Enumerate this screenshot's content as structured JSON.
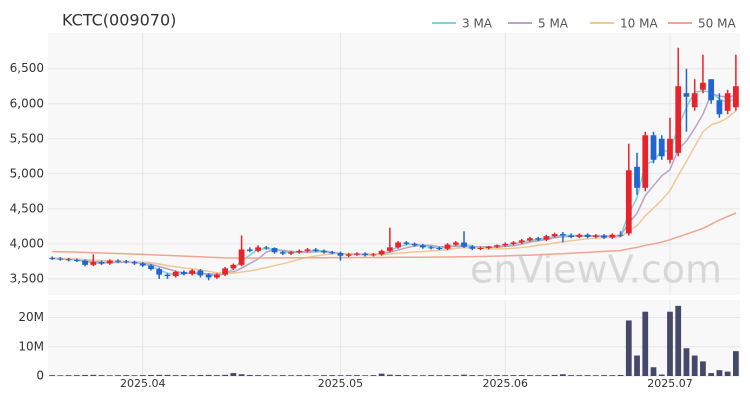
{
  "chart_data": {
    "type": "candlestick",
    "title": "KCTC(009070)",
    "watermark": "enViewV.com",
    "categories": [
      null,
      null,
      null,
      null,
      null,
      null,
      null,
      null,
      null,
      null,
      null,
      "2025.04",
      null,
      null,
      null,
      null,
      null,
      null,
      null,
      null,
      null,
      null,
      null,
      null,
      null,
      null,
      null,
      null,
      null,
      null,
      null,
      null,
      null,
      null,
      null,
      "2025.05",
      null,
      null,
      null,
      null,
      null,
      null,
      null,
      null,
      null,
      null,
      null,
      null,
      null,
      null,
      null,
      null,
      null,
      null,
      null,
      "2025.06",
      null,
      null,
      null,
      null,
      null,
      null,
      null,
      null,
      null,
      null,
      null,
      null,
      null,
      null,
      null,
      null,
      null,
      null,
      null,
      "2025.07",
      null,
      null,
      null,
      null,
      null,
      null,
      null,
      null
    ],
    "open": [
      3800,
      3790,
      3780,
      3770,
      3760,
      3700,
      3740,
      3720,
      3760,
      3750,
      3740,
      3720,
      3690,
      3640,
      3560,
      3540,
      3600,
      3570,
      3620,
      3560,
      3520,
      3560,
      3650,
      3700,
      3920,
      3900,
      3950,
      3940,
      3880,
      3860,
      3880,
      3900,
      3920,
      3900,
      3880,
      3870,
      3830,
      3850,
      3860,
      3840,
      3850,
      3900,
      3950,
      4020,
      4000,
      3980,
      3950,
      3940,
      3930,
      3990,
      4020,
      3960,
      3930,
      3940,
      3960,
      3980,
      4000,
      4020,
      4050,
      4080,
      4060,
      4110,
      4140,
      4120,
      4100,
      4130,
      4100,
      4120,
      4090,
      4130,
      4150,
      5100,
      4800,
      5550,
      5500,
      5200,
      5300,
      6150,
      5950,
      6200,
      6350,
      6050,
      5900,
      5950
    ],
    "high": [
      3820,
      3810,
      3800,
      3790,
      3780,
      3850,
      3760,
      3780,
      3780,
      3770,
      3760,
      3740,
      3710,
      3660,
      3580,
      3620,
      3620,
      3640,
      3640,
      3580,
      3580,
      3670,
      3720,
      4120,
      3950,
      3980,
      3970,
      3950,
      3900,
      3900,
      3920,
      3940,
      3940,
      3920,
      3900,
      3890,
      3870,
      3880,
      3880,
      3870,
      3920,
      4230,
      4040,
      4040,
      4020,
      4000,
      3970,
      3960,
      4010,
      4040,
      4180,
      3980,
      3960,
      3970,
      3990,
      4020,
      4040,
      4070,
      4100,
      4100,
      4130,
      4160,
      4170,
      4150,
      4150,
      4150,
      4140,
      4140,
      4150,
      4180,
      5430,
      5300,
      5600,
      5600,
      5550,
      5800,
      6800,
      6500,
      6350,
      6700,
      6350,
      6150,
      6200,
      6700
    ],
    "low": [
      3770,
      3760,
      3750,
      3740,
      3680,
      3680,
      3700,
      3700,
      3730,
      3720,
      3700,
      3670,
      3620,
      3500,
      3500,
      3520,
      3550,
      3550,
      3520,
      3480,
      3500,
      3540,
      3630,
      3680,
      3880,
      3880,
      3920,
      3860,
      3840,
      3840,
      3860,
      3880,
      3880,
      3860,
      3850,
      3760,
      3810,
      3830,
      3820,
      3820,
      3830,
      3880,
      3930,
      3980,
      3960,
      3930,
      3920,
      3910,
      3910,
      3970,
      3940,
      3910,
      3910,
      3920,
      3940,
      3960,
      3980,
      4000,
      4030,
      4040,
      4040,
      4090,
      4020,
      4080,
      4080,
      4080,
      4080,
      4070,
      4070,
      4100,
      4120,
      4700,
      4750,
      5150,
      5200,
      5150,
      5250,
      5600,
      5900,
      6150,
      6000,
      5800,
      5850,
      5900
    ],
    "close": [
      3790,
      3780,
      3770,
      3760,
      3700,
      3740,
      3720,
      3760,
      3750,
      3740,
      3720,
      3690,
      3640,
      3560,
      3540,
      3600,
      3570,
      3620,
      3550,
      3520,
      3560,
      3650,
      3700,
      3920,
      3900,
      3950,
      3940,
      3880,
      3860,
      3880,
      3900,
      3920,
      3900,
      3880,
      3870,
      3830,
      3850,
      3860,
      3840,
      3850,
      3900,
      3950,
      4020,
      4000,
      3980,
      3950,
      3940,
      3930,
      3990,
      4020,
      3960,
      3930,
      3940,
      3960,
      3980,
      4000,
      4020,
      4050,
      4080,
      4060,
      4110,
      4140,
      4120,
      4100,
      4130,
      4100,
      4120,
      4090,
      4130,
      4120,
      5050,
      4800,
      5550,
      5200,
      5250,
      5500,
      6250,
      6100,
      6150,
      6300,
      6050,
      5850,
      6150,
      6250
    ],
    "volume": [
      300000,
      250000,
      280000,
      300000,
      350000,
      400000,
      300000,
      250000,
      280000,
      300000,
      260000,
      300000,
      350000,
      400000,
      380000,
      300000,
      320000,
      300000,
      350000,
      380000,
      300000,
      400000,
      1000000,
      600000,
      350000,
      300000,
      280000,
      250000,
      300000,
      260000,
      280000,
      300000,
      250000,
      280000,
      300000,
      260000,
      280000,
      300000,
      250000,
      300000,
      800000,
      450000,
      350000,
      300000,
      280000,
      260000,
      300000,
      280000,
      320000,
      300000,
      450000,
      300000,
      280000,
      260000,
      300000,
      280000,
      300000,
      320000,
      300000,
      280000,
      300000,
      350000,
      600000,
      300000,
      280000,
      300000,
      260000,
      300000,
      280000,
      350000,
      19000000,
      7000000,
      22000000,
      3000000,
      500000,
      22000000,
      24000000,
      9500000,
      7000000,
      5000000,
      1000000,
      2000000,
      1500000,
      8500000
    ],
    "up_color": "#e8232b",
    "down_color": "#1f66d1",
    "volume_color": "#464869",
    "ma_series": [
      {
        "name": "3 MA",
        "color": "#7fd3d6",
        "values": [
          3790,
          3785,
          3780,
          3770,
          3743,
          3733,
          3720,
          3740,
          3743,
          3750,
          3737,
          3717,
          3683,
          3630,
          3580,
          3567,
          3570,
          3597,
          3580,
          3563,
          3543,
          3577,
          3637,
          3757,
          3840,
          3923,
          3930,
          3923,
          3893,
          3873,
          3880,
          3900,
          3907,
          3900,
          3883,
          3860,
          3850,
          3847,
          3850,
          3850,
          3863,
          3900,
          3957,
          3990,
          4000,
          3977,
          3957,
          3940,
          3953,
          3980,
          3990,
          3970,
          3943,
          3943,
          3960,
          3980,
          4000,
          4023,
          4050,
          4063,
          4083,
          4103,
          4123,
          4120,
          4117,
          4110,
          4117,
          4103,
          4113,
          4113,
          4433,
          4657,
          5133,
          5183,
          5333,
          5317,
          5667,
          5950,
          6167,
          6183,
          6167,
          6067,
          6017,
          6083
        ]
      },
      {
        "name": "5 MA",
        "color": "#b9a3c9",
        "values": [
          3790,
          3786,
          3782,
          3778,
          3760,
          3750,
          3738,
          3736,
          3734,
          3742,
          3738,
          3724,
          3710,
          3676,
          3642,
          3608,
          3582,
          3578,
          3576,
          3572,
          3564,
          3584,
          3600,
          3652,
          3718,
          3784,
          3882,
          3918,
          3906,
          3892,
          3884,
          3876,
          3888,
          3888,
          3874,
          3860,
          3856,
          3852,
          3844,
          3846,
          3860,
          3880,
          3912,
          3944,
          3970,
          3980,
          3978,
          3960,
          3958,
          3966,
          3958,
          3954,
          3956,
          3960,
          3952,
          3962,
          3974,
          3994,
          4026,
          4042,
          4064,
          4088,
          4102,
          4106,
          4114,
          4116,
          4114,
          4108,
          4114,
          4112,
          4298,
          4434,
          4692,
          4830,
          4970,
          5060,
          5350,
          5470,
          5650,
          5850,
          6140,
          6110,
          6090,
          6120
        ]
      },
      {
        "name": "10 MA",
        "color": "#f0c896",
        "values": [
          3800,
          3795,
          3790,
          3785,
          3775,
          3770,
          3762,
          3758,
          3754,
          3750,
          3746,
          3740,
          3733,
          3713,
          3690,
          3674,
          3656,
          3644,
          3627,
          3607,
          3588,
          3584,
          3582,
          3598,
          3612,
          3636,
          3662,
          3688,
          3717,
          3746,
          3780,
          3807,
          3827,
          3845,
          3856,
          3860,
          3862,
          3860,
          3858,
          3855,
          3850,
          3855,
          3865,
          3875,
          3885,
          3890,
          3899,
          3907,
          3919,
          3936,
          3947,
          3945,
          3936,
          3930,
          3928,
          3930,
          3937,
          3948,
          3963,
          3981,
          3995,
          4012,
          4031,
          4045,
          4060,
          4072,
          4083,
          4090,
          4095,
          4097,
          4190,
          4258,
          4400,
          4510,
          4625,
          4760,
          4975,
          5180,
          5390,
          5600,
          5700,
          5740,
          5800,
          5900
        ]
      },
      {
        "name": "50 MA",
        "color": "#f0a590",
        "values": [
          3890,
          3888,
          3885,
          3882,
          3878,
          3874,
          3870,
          3866,
          3862,
          3858,
          3854,
          3850,
          3845,
          3840,
          3835,
          3830,
          3825,
          3820,
          3815,
          3810,
          3805,
          3800,
          3798,
          3797,
          3797,
          3798,
          3799,
          3800,
          3800,
          3801,
          3802,
          3802,
          3803,
          3803,
          3804,
          3804,
          3804,
          3805,
          3805,
          3805,
          3806,
          3807,
          3808,
          3809,
          3810,
          3810,
          3811,
          3812,
          3813,
          3814,
          3816,
          3818,
          3820,
          3822,
          3825,
          3828,
          3832,
          3836,
          3840,
          3845,
          3850,
          3855,
          3860,
          3866,
          3872,
          3878,
          3885,
          3892,
          3898,
          3904,
          3930,
          3950,
          3980,
          4000,
          4025,
          4060,
          4100,
          4140,
          4180,
          4220,
          4280,
          4340,
          4390,
          4440
        ]
      }
    ],
    "ylim": [
      3270,
      7010
    ],
    "yticks": [
      {
        "value": 3500,
        "label": "3,500"
      },
      {
        "value": 4000,
        "label": "4,000"
      },
      {
        "value": 4500,
        "label": "4,500"
      },
      {
        "value": 5000,
        "label": "5,000"
      },
      {
        "value": 5500,
        "label": "5,500"
      },
      {
        "value": 6000,
        "label": "6,000"
      },
      {
        "value": 6500,
        "label": "6,500"
      }
    ],
    "volume_ylim": [
      0,
      26000000
    ],
    "volume_yticks": [
      0,
      {
        "value": 10000000,
        "label": "10M"
      },
      {
        "value": 20000000,
        "label": "20M"
      }
    ],
    "grid": true
  }
}
